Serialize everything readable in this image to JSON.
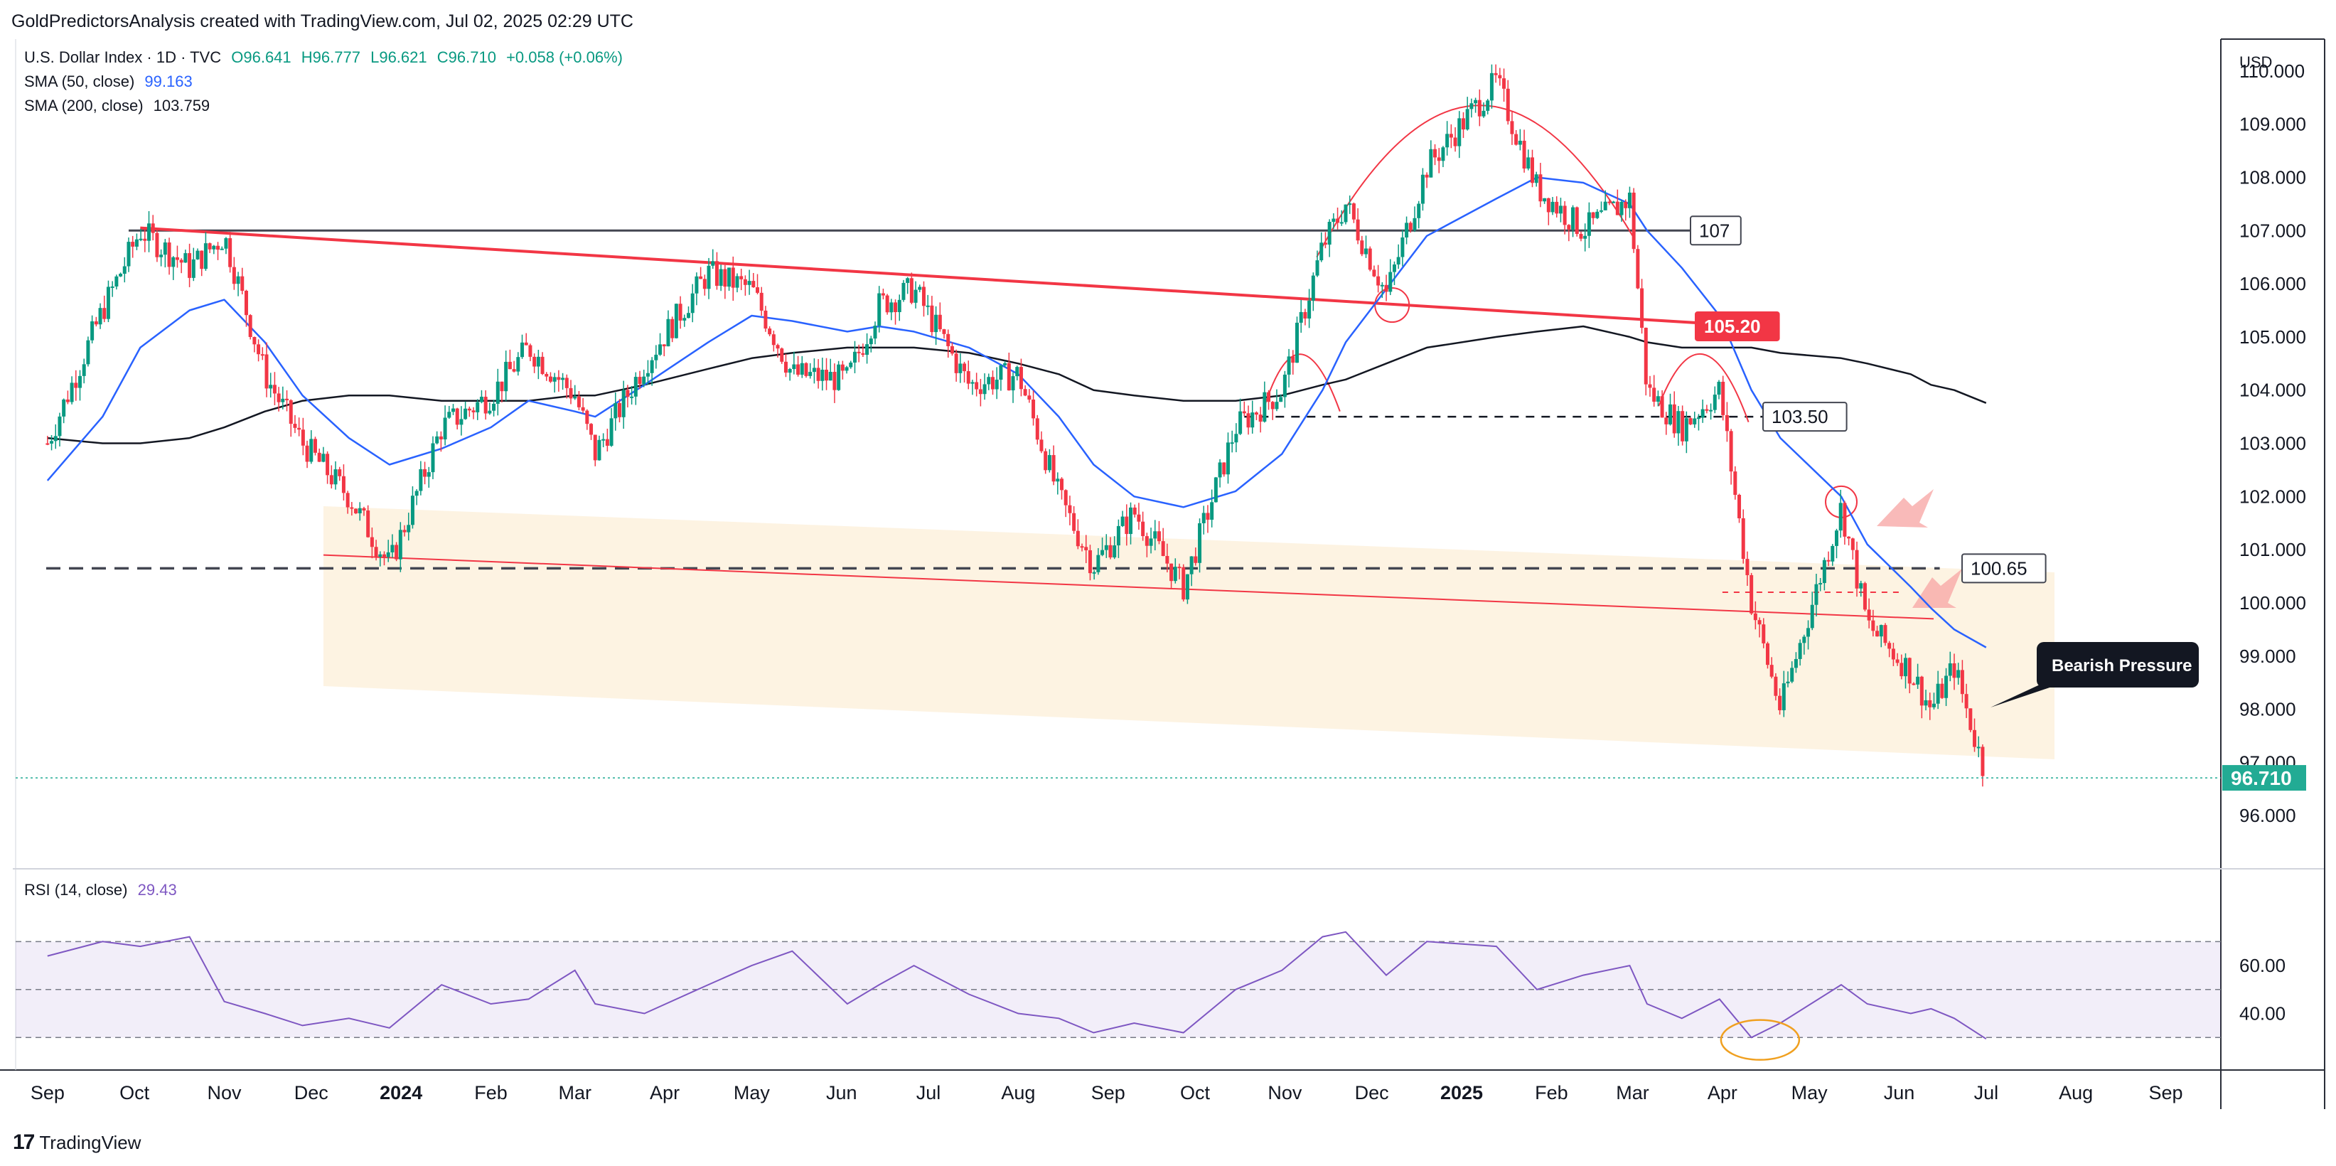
{
  "header": {
    "attribution": "GoldPredictorsAnalysis created with TradingView.com, Jul 02, 2025 02:29 UTC"
  },
  "legend": {
    "symbol": "U.S. Dollar Index · 1D · TVC",
    "open": "O96.641",
    "high": "H96.777",
    "low": "L96.621",
    "close": "C96.710",
    "change": "+0.058 (+0.06%)",
    "sma50_label": "SMA (50, close)",
    "sma50_value": "99.163",
    "sma200_label": "SMA (200, close)",
    "sma200_value": "103.759",
    "rsi_label": "RSI (14, close)",
    "rsi_value": "29.43"
  },
  "footer": {
    "brand": "TradingView"
  },
  "colors": {
    "up": "#089981",
    "down": "#f23645",
    "sma50": "#2962ff",
    "sma200": "#131722",
    "rsi": "#7e57c2",
    "channel": "#fdf1dd",
    "last_price": "#22ab94"
  },
  "chart_data": {
    "type": "line",
    "title": "U.S. Dollar Index · 1D · TVC",
    "currency": "USD",
    "x": [
      "2023-09-01",
      "2023-09-20",
      "2023-10-03",
      "2023-10-20",
      "2023-11-01",
      "2023-11-15",
      "2023-11-28",
      "2023-12-14",
      "2023-12-28",
      "2024-01-15",
      "2024-02-01",
      "2024-02-14",
      "2024-03-01",
      "2024-03-08",
      "2024-03-25",
      "2024-04-16",
      "2024-05-01",
      "2024-05-15",
      "2024-06-03",
      "2024-06-14",
      "2024-06-26",
      "2024-07-15",
      "2024-08-01",
      "2024-08-15",
      "2024-08-27",
      "2024-09-10",
      "2024-09-27",
      "2024-10-15",
      "2024-10-31",
      "2024-11-14",
      "2024-11-22",
      "2024-12-06",
      "2024-12-20",
      "2025-01-13",
      "2025-01-27",
      "2025-02-12",
      "2025-02-28",
      "2025-03-06",
      "2025-03-18",
      "2025-03-31",
      "2025-04-11",
      "2025-04-21",
      "2025-05-12",
      "2025-05-21",
      "2025-06-05",
      "2025-06-12",
      "2025-06-20",
      "2025-07-01"
    ],
    "series": [
      {
        "name": "U.S. Dollar Index",
        "values": [
          103.0,
          105.5,
          107.0,
          106.3,
          106.9,
          104.3,
          103.0,
          102.0,
          100.7,
          103.3,
          103.9,
          104.8,
          103.9,
          102.8,
          104.5,
          106.2,
          105.9,
          104.3,
          104.2,
          105.6,
          105.9,
          104.1,
          104.3,
          102.0,
          100.7,
          101.7,
          100.3,
          103.3,
          104.0,
          106.7,
          107.5,
          105.8,
          108.2,
          109.8,
          107.8,
          107.0,
          107.6,
          104.0,
          103.3,
          104.0,
          100.0,
          98.0,
          101.8,
          99.6,
          98.7,
          98.0,
          98.8,
          96.71
        ]
      },
      {
        "name": "SMA (50, close)",
        "values": [
          102.3,
          103.5,
          104.8,
          105.5,
          105.7,
          104.9,
          103.9,
          103.1,
          102.6,
          102.9,
          103.3,
          103.8,
          103.6,
          103.5,
          104.1,
          104.9,
          105.4,
          105.3,
          105.1,
          105.2,
          105.1,
          104.8,
          104.3,
          103.5,
          102.6,
          102.0,
          101.8,
          102.1,
          102.8,
          104.0,
          104.9,
          105.9,
          106.9,
          107.6,
          108.0,
          107.9,
          107.5,
          107.0,
          106.3,
          105.4,
          104.0,
          103.1,
          102.0,
          101.1,
          100.3,
          99.9,
          99.5,
          99.163
        ]
      },
      {
        "name": "SMA (200, close)",
        "values": [
          103.1,
          103.0,
          103.0,
          103.1,
          103.3,
          103.6,
          103.8,
          103.9,
          103.9,
          103.8,
          103.8,
          103.8,
          103.9,
          103.9,
          104.1,
          104.4,
          104.6,
          104.7,
          104.8,
          104.8,
          104.8,
          104.7,
          104.5,
          104.3,
          104.0,
          103.9,
          103.8,
          103.8,
          103.9,
          104.1,
          104.2,
          104.5,
          104.8,
          105.0,
          105.1,
          105.2,
          105.0,
          104.9,
          104.8,
          104.8,
          104.8,
          104.7,
          104.6,
          104.5,
          104.3,
          104.1,
          104.0,
          103.759
        ]
      }
    ],
    "ylim": [
      95.0,
      110.6
    ],
    "y_ticks": [
      "110.000",
      "109.000",
      "108.000",
      "107.000",
      "106.000",
      "105.000",
      "104.000",
      "103.000",
      "102.000",
      "101.000",
      "100.000",
      "99.000",
      "98.000",
      "97.000",
      "96.000"
    ],
    "x_ticks": [
      "Sep",
      "Oct",
      "Nov",
      "Dec",
      "2024",
      "Feb",
      "Mar",
      "Apr",
      "May",
      "Jun",
      "Jul",
      "Aug",
      "Sep",
      "Oct",
      "Nov",
      "Dec",
      "2025",
      "Feb",
      "Mar",
      "Apr",
      "May",
      "Jun",
      "Jul",
      "Aug",
      "Sep"
    ],
    "last_price": "96.710",
    "annotations": [
      {
        "text": "107",
        "value": 107.0
      },
      {
        "text": "105.20",
        "value": 105.2
      },
      {
        "text": "103.50",
        "value": 103.5
      },
      {
        "text": "100.65",
        "value": 100.65
      },
      {
        "text": "Bearish Pressure"
      }
    ],
    "rsi": {
      "name": "RSI (14, close)",
      "values": [
        64,
        70,
        68,
        72,
        45,
        40,
        35,
        38,
        34,
        52,
        44,
        46,
        58,
        44,
        40,
        52,
        60,
        66,
        44,
        52,
        60,
        48,
        40,
        38,
        32,
        36,
        32,
        50,
        58,
        72,
        74,
        56,
        70,
        68,
        50,
        56,
        60,
        44,
        38,
        46,
        30,
        36,
        52,
        44,
        40,
        42,
        38,
        29.43
      ],
      "y_ticks": [
        "60.00",
        "40.00"
      ],
      "levels": [
        70,
        50,
        30
      ]
    }
  }
}
